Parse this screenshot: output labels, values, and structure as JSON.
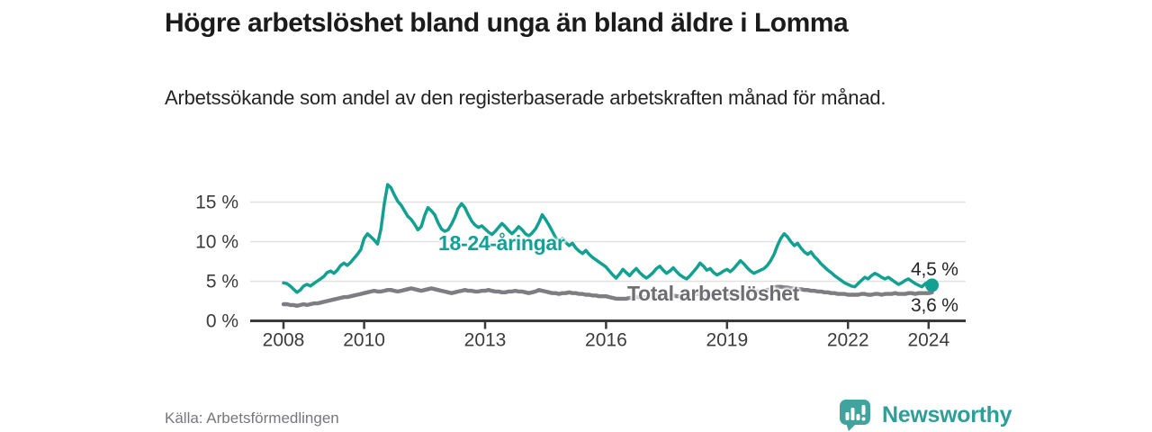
{
  "header": {
    "title": "Högre arbetslöshet bland unga än bland äldre i Lomma",
    "subtitle": "Arbetssökande som andel av den registerbaserade arbetskraften månad för månad."
  },
  "footer": {
    "source": "Källa: Arbetsförmedlingen",
    "brand": "Newsworthy"
  },
  "icons": {
    "brand_logo": "bar-chart-speech-bubble"
  },
  "colors": {
    "youth_line": "#12a190",
    "youth_label": "#14a096",
    "total_line": "#7e7e82",
    "total_label": "#6d6d72",
    "axis": "#3a3a3a",
    "grid": "#e1e1e1",
    "tick_text": "#3c3c3c",
    "value_text": "#262626",
    "logo_fill": "#41a39e",
    "logo_text": "#2f9e98",
    "source_text": "#77777c"
  },
  "chart_data": {
    "type": "line",
    "x_unit": "year-month",
    "x_start_year": 2008,
    "x_step_months": 1,
    "xlim": [
      2007.2,
      2024.9
    ],
    "ylim": [
      0,
      17.5
    ],
    "grid": "horizontal-only",
    "legend_position": "inline-labels",
    "x_ticks": [
      {
        "value": 2008,
        "label": "2008"
      },
      {
        "value": 2010,
        "label": "2010"
      },
      {
        "value": 2013,
        "label": "2013"
      },
      {
        "value": 2016,
        "label": "2016"
      },
      {
        "value": 2019,
        "label": "2019"
      },
      {
        "value": 2022,
        "label": "2022"
      },
      {
        "value": 2024,
        "label": "2024"
      }
    ],
    "y_ticks": [
      {
        "value": 0,
        "label": "0 %"
      },
      {
        "value": 5,
        "label": "5 %"
      },
      {
        "value": 10,
        "label": "10 %"
      },
      {
        "value": 15,
        "label": "15 %"
      }
    ],
    "series": [
      {
        "name": "18-24-åringar",
        "color_key": "youth_line",
        "end_label": "4,5 %",
        "end_value": 4.5,
        "end_dot": true,
        "values": [
          4.8,
          4.7,
          4.4,
          4.0,
          3.6,
          3.9,
          4.4,
          4.6,
          4.4,
          4.7,
          5.0,
          5.3,
          5.6,
          6.1,
          6.3,
          6.0,
          6.4,
          7.0,
          7.3,
          7.0,
          7.4,
          7.9,
          8.4,
          9.0,
          10.4,
          11.0,
          10.6,
          10.2,
          9.7,
          11.6,
          14.8,
          17.2,
          16.8,
          15.9,
          15.1,
          14.6,
          13.9,
          13.2,
          12.8,
          12.2,
          11.5,
          11.9,
          13.3,
          14.3,
          13.9,
          13.4,
          12.4,
          11.6,
          11.3,
          11.5,
          12.2,
          13.1,
          14.2,
          14.8,
          14.3,
          13.4,
          12.6,
          12.1,
          11.8,
          12.0,
          11.6,
          11.2,
          10.9,
          11.3,
          11.8,
          12.3,
          11.9,
          11.4,
          11.0,
          11.4,
          11.9,
          11.5,
          11.0,
          10.7,
          11.1,
          11.6,
          12.4,
          13.4,
          12.8,
          12.1,
          11.3,
          10.5,
          10.1,
          10.4,
          9.9,
          9.5,
          9.8,
          9.2,
          8.8,
          8.5,
          8.9,
          8.4,
          8.0,
          7.7,
          7.4,
          7.1,
          6.8,
          6.3,
          5.8,
          5.4,
          5.9,
          6.5,
          6.1,
          5.7,
          6.2,
          6.6,
          6.1,
          5.7,
          5.4,
          5.7,
          6.1,
          6.6,
          6.9,
          6.4,
          6.0,
          6.3,
          6.7,
          6.2,
          5.8,
          5.5,
          5.3,
          5.7,
          6.2,
          6.7,
          7.3,
          6.9,
          6.4,
          6.6,
          6.1,
          5.8,
          6.0,
          6.3,
          6.5,
          6.2,
          6.6,
          7.1,
          7.6,
          7.2,
          6.7,
          6.3,
          6.0,
          6.2,
          6.4,
          6.6,
          7.0,
          7.6,
          8.4,
          9.5,
          10.4,
          11.0,
          10.6,
          10.0,
          9.5,
          9.8,
          9.2,
          8.7,
          8.4,
          8.7,
          8.1,
          7.7,
          7.2,
          6.8,
          6.4,
          6.1,
          5.7,
          5.4,
          5.1,
          4.8,
          4.6,
          4.4,
          4.3,
          4.7,
          5.1,
          5.5,
          5.3,
          5.7,
          6.0,
          5.8,
          5.5,
          5.3,
          5.5,
          5.2,
          4.9,
          4.6,
          4.8,
          5.1,
          5.3,
          5.0,
          4.7,
          4.5,
          4.3,
          4.7,
          4.9,
          4.5
        ]
      },
      {
        "name": "Total arbetslöshet",
        "color_key": "total_line",
        "end_label": "3,6 %",
        "end_value": 3.6,
        "end_dot": false,
        "values": [
          2.1,
          2.1,
          2.0,
          2.0,
          1.9,
          2.0,
          2.1,
          2.0,
          2.1,
          2.2,
          2.2,
          2.3,
          2.4,
          2.5,
          2.6,
          2.7,
          2.8,
          2.9,
          3.0,
          3.0,
          3.1,
          3.2,
          3.3,
          3.4,
          3.5,
          3.6,
          3.7,
          3.8,
          3.7,
          3.7,
          3.8,
          3.9,
          3.9,
          3.8,
          3.7,
          3.8,
          3.9,
          4.0,
          4.1,
          4.0,
          3.9,
          3.8,
          3.9,
          4.0,
          4.1,
          4.0,
          3.9,
          3.8,
          3.7,
          3.6,
          3.5,
          3.6,
          3.7,
          3.8,
          3.9,
          3.8,
          3.8,
          3.7,
          3.7,
          3.8,
          3.8,
          3.9,
          3.8,
          3.7,
          3.7,
          3.6,
          3.6,
          3.7,
          3.7,
          3.8,
          3.7,
          3.7,
          3.6,
          3.5,
          3.6,
          3.7,
          3.9,
          3.8,
          3.7,
          3.6,
          3.5,
          3.5,
          3.4,
          3.5,
          3.5,
          3.6,
          3.5,
          3.5,
          3.4,
          3.4,
          3.3,
          3.3,
          3.2,
          3.2,
          3.1,
          3.1,
          3.1,
          3.0,
          2.9,
          2.8,
          2.8,
          2.8,
          2.8,
          2.9,
          2.9,
          3.0,
          3.0,
          3.0,
          3.0,
          3.1,
          3.1,
          3.2,
          3.2,
          3.1,
          3.1,
          3.2,
          3.2,
          3.1,
          3.1,
          3.2,
          3.2,
          3.3,
          3.3,
          3.4,
          3.4,
          3.3,
          3.3,
          3.4,
          3.3,
          3.3,
          3.4,
          3.4,
          3.4,
          3.4,
          3.5,
          3.5,
          3.6,
          3.5,
          3.5,
          3.6,
          3.6,
          3.7,
          3.7,
          3.8,
          3.9,
          4.0,
          4.2,
          4.3,
          4.3,
          4.2,
          4.2,
          4.1,
          4.1,
          4.0,
          4.0,
          3.9,
          3.9,
          3.8,
          3.8,
          3.7,
          3.7,
          3.6,
          3.6,
          3.5,
          3.5,
          3.4,
          3.4,
          3.4,
          3.3,
          3.3,
          3.3,
          3.3,
          3.4,
          3.4,
          3.3,
          3.3,
          3.4,
          3.4,
          3.3,
          3.4,
          3.4,
          3.4,
          3.5,
          3.4,
          3.4,
          3.4,
          3.5,
          3.5,
          3.4,
          3.5,
          3.5,
          3.5,
          3.5,
          3.6
        ]
      }
    ]
  }
}
